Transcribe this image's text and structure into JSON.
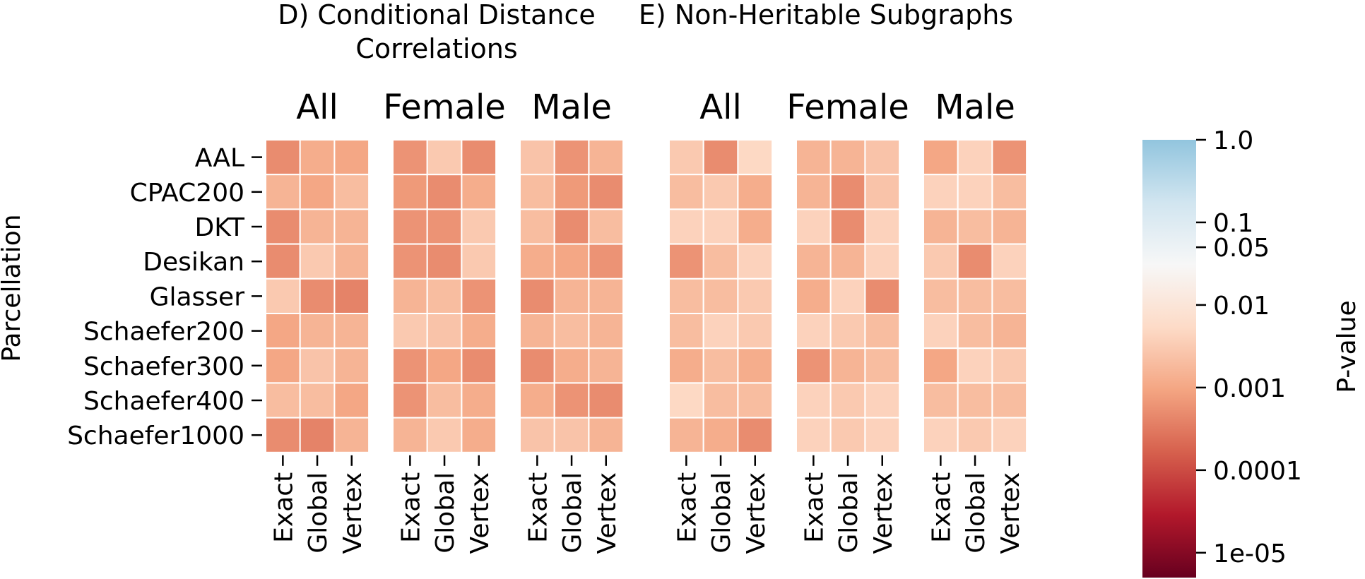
{
  "chart_data": {
    "type": "heatmap",
    "rows": [
      "AAL",
      "CPAC200",
      "DKT",
      "Desikan",
      "Glasser",
      "Schaefer200",
      "Schaefer300",
      "Schaefer400",
      "Schaefer1000"
    ],
    "columns": [
      "Exact",
      "Global",
      "Vertex"
    ],
    "ylabel": "Parcellation",
    "color_scale": "log",
    "colormap": [
      "#67001f",
      "#b2182b",
      "#d6604d",
      "#f4a582",
      "#fddbc7",
      "#f7f7f7",
      "#d1e5f0",
      "#92c5de"
    ],
    "colorbar": {
      "label": "P-value",
      "range": [
        5e-06,
        1.0
      ],
      "ticks": [
        {
          "value": 1.0,
          "label": "1.0"
        },
        {
          "value": 0.1,
          "label": "0.1"
        },
        {
          "value": 0.05,
          "label": "0.05"
        },
        {
          "value": 0.01,
          "label": "0.01"
        },
        {
          "value": 0.001,
          "label": "0.001"
        },
        {
          "value": 0.0001,
          "label": "0.0001"
        },
        {
          "value": 1e-05,
          "label": "1e-05"
        }
      ]
    },
    "panels": [
      {
        "title": "D) Conditional Distance Correlations",
        "title_lines": [
          "D) Conditional Distance",
          "Correlations"
        ],
        "groups": [
          {
            "name": "All",
            "values": [
              [
                0.0005,
                0.0012,
                0.001
              ],
              [
                0.0015,
                0.001,
                0.002
              ],
              [
                0.0005,
                0.0015,
                0.0015
              ],
              [
                0.0005,
                0.003,
                0.0015
              ],
              [
                0.003,
                0.0005,
                0.0004
              ],
              [
                0.001,
                0.0015,
                0.0015
              ],
              [
                0.001,
                0.0025,
                0.0015
              ],
              [
                0.002,
                0.002,
                0.001
              ],
              [
                0.0005,
                0.0004,
                0.0015
              ]
            ]
          },
          {
            "name": "Female",
            "values": [
              [
                0.0006,
                0.003,
                0.0005
              ],
              [
                0.0007,
                0.0005,
                0.0012
              ],
              [
                0.0006,
                0.0006,
                0.003
              ],
              [
                0.0006,
                0.0005,
                0.003
              ],
              [
                0.0015,
                0.002,
                0.0006
              ],
              [
                0.003,
                0.0025,
                0.0012
              ],
              [
                0.0006,
                0.001,
                0.0005
              ],
              [
                0.0006,
                0.002,
                0.0012
              ],
              [
                0.0015,
                0.003,
                0.0012
              ]
            ]
          },
          {
            "name": "Male",
            "values": [
              [
                0.0025,
                0.0006,
                0.0015
              ],
              [
                0.002,
                0.0007,
                0.0005
              ],
              [
                0.002,
                0.0005,
                0.002
              ],
              [
                0.0012,
                0.001,
                0.0006
              ],
              [
                0.0005,
                0.0015,
                0.0015
              ],
              [
                0.0015,
                0.002,
                0.0015
              ],
              [
                0.0005,
                0.0012,
                0.0015
              ],
              [
                0.0012,
                0.0006,
                0.0005
              ],
              [
                0.0025,
                0.0025,
                0.0015
              ]
            ]
          }
        ]
      },
      {
        "title": "E) Non-Heritable Subgraphs",
        "title_lines": [
          "E) Non-Heritable Subgraphs"
        ],
        "groups": [
          {
            "name": "All",
            "values": [
              [
                0.003,
                0.0005,
                0.005
              ],
              [
                0.002,
                0.003,
                0.0012
              ],
              [
                0.004,
                0.004,
                0.0012
              ],
              [
                0.0006,
                0.002,
                0.004
              ],
              [
                0.002,
                0.002,
                0.003
              ],
              [
                0.002,
                0.004,
                0.003
              ],
              [
                0.0012,
                0.002,
                0.0012
              ],
              [
                0.005,
                0.002,
                0.002
              ],
              [
                0.0015,
                0.0012,
                0.0005
              ]
            ]
          },
          {
            "name": "Female",
            "values": [
              [
                0.0015,
                0.0015,
                0.0025
              ],
              [
                0.0015,
                0.0005,
                0.0025
              ],
              [
                0.004,
                0.0005,
                0.004
              ],
              [
                0.0015,
                0.0015,
                0.004
              ],
              [
                0.0012,
                0.004,
                0.0005
              ],
              [
                0.004,
                0.003,
                0.002
              ],
              [
                0.0006,
                0.0015,
                0.002
              ],
              [
                0.004,
                0.003,
                0.004
              ],
              [
                0.004,
                0.003,
                0.004
              ]
            ]
          },
          {
            "name": "Male",
            "values": [
              [
                0.001,
                0.004,
                0.0006
              ],
              [
                0.004,
                0.004,
                0.002
              ],
              [
                0.0015,
                0.002,
                0.0015
              ],
              [
                0.003,
                0.0005,
                0.004
              ],
              [
                0.002,
                0.002,
                0.002
              ],
              [
                0.004,
                0.002,
                0.0015
              ],
              [
                0.001,
                0.004,
                0.003
              ],
              [
                0.002,
                0.002,
                0.002
              ],
              [
                0.004,
                0.003,
                0.004
              ]
            ]
          }
        ]
      }
    ]
  }
}
